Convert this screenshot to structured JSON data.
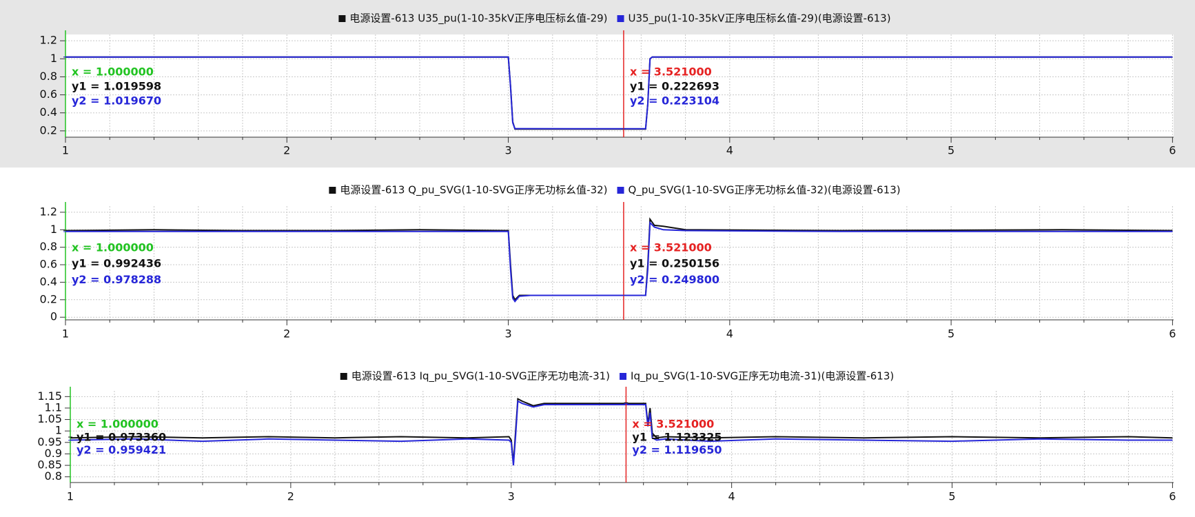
{
  "chart_data": [
    {
      "type": "line",
      "x": [
        1,
        2,
        2.99,
        3.0,
        3.01,
        3.02,
        3.03,
        3.3,
        3.62,
        3.63,
        3.64,
        3.65,
        5,
        6
      ],
      "series": [
        {
          "name": "电源设置-613 U35_pu(1-10-35kV正序电压标幺值-29)",
          "color": "#111111",
          "values": [
            1.02,
            1.02,
            1.02,
            1.02,
            0.7,
            0.3,
            0.22,
            0.22,
            0.22,
            0.5,
            1.0,
            1.02,
            1.02,
            1.02
          ]
        },
        {
          "name": "U35_pu(1-10-35kV正序电压标幺值-29)(电源设置-613)",
          "color": "#2626d8",
          "values": [
            1.02,
            1.02,
            1.02,
            1.02,
            0.69,
            0.29,
            0.225,
            0.223,
            0.223,
            0.5,
            1.0,
            1.02,
            1.02,
            1.02
          ]
        }
      ],
      "xlim": [
        1,
        6.005
      ],
      "xticks": [
        1,
        2,
        3,
        4,
        5,
        6
      ],
      "xminor": [
        1.2,
        1.4,
        1.6,
        1.8,
        2.2,
        2.4,
        2.6,
        2.8,
        3.2,
        3.4,
        3.6,
        3.8,
        4.2,
        4.4,
        4.6,
        4.8,
        5.2,
        5.4,
        5.6,
        5.8
      ],
      "ylim": [
        0.13,
        1.27
      ],
      "yticks": [
        0.2,
        0.4,
        0.6,
        0.8,
        1,
        1.2
      ],
      "grid": true,
      "cursors": [
        {
          "color": "#22c322",
          "x": {
            "value": 1,
            "label": "x = 1.000000"
          },
          "y1": {
            "value": 1.019598,
            "label": "y1 = 1.019598"
          },
          "y2": {
            "value": 1.01967,
            "label": "y2 = 1.019670"
          }
        },
        {
          "color": "#e52222",
          "x": {
            "value": 3.521,
            "label": "x = 3.521000"
          },
          "y1": {
            "value": 0.222693,
            "label": "y1 = 0.222693"
          },
          "y2": {
            "value": 0.223104,
            "label": "y2 = 0.223104"
          }
        }
      ]
    },
    {
      "type": "line",
      "x": [
        1,
        1.4,
        1.8,
        2.2,
        2.6,
        2.99,
        3.0,
        3.01,
        3.02,
        3.03,
        3.05,
        3.1,
        3.62,
        3.63,
        3.64,
        3.66,
        3.7,
        3.8,
        4.5,
        5.5,
        6
      ],
      "series": [
        {
          "name": "电源设置-613 Q_pu_SVG(1-10-SVG正序无功标幺值-32)",
          "color": "#111111",
          "values": [
            0.99,
            1.0,
            0.99,
            0.99,
            1.0,
            0.99,
            0.99,
            0.6,
            0.25,
            0.2,
            0.25,
            0.25,
            0.25,
            0.6,
            1.12,
            1.05,
            1.04,
            1.0,
            0.99,
            1.0,
            0.99
          ]
        },
        {
          "name": "Q_pu_SVG(1-10-SVG正序无功标幺值-32)(电源设置-613)",
          "color": "#2626d8",
          "values": [
            0.98,
            0.98,
            0.98,
            0.98,
            0.98,
            0.98,
            0.98,
            0.55,
            0.22,
            0.18,
            0.24,
            0.25,
            0.25,
            0.55,
            1.08,
            1.03,
            1.0,
            0.99,
            0.98,
            0.98,
            0.98
          ]
        }
      ],
      "xlim": [
        1,
        6.005
      ],
      "xticks": [
        1,
        2,
        3,
        4,
        5,
        6
      ],
      "xminor": [
        1.2,
        1.4,
        1.6,
        1.8,
        2.2,
        2.4,
        2.6,
        2.8,
        3.2,
        3.4,
        3.6,
        3.8,
        4.2,
        4.4,
        4.6,
        4.8,
        5.2,
        5.4,
        5.6,
        5.8
      ],
      "ylim": [
        -0.03,
        1.27
      ],
      "yticks": [
        0,
        0.2,
        0.4,
        0.6,
        0.8,
        1,
        1.2
      ],
      "grid": true,
      "cursors": [
        {
          "color": "#22c322",
          "x": {
            "value": 1,
            "label": "x = 1.000000"
          },
          "y1": {
            "value": 0.992436,
            "label": "y1 = 0.992436"
          },
          "y2": {
            "value": 0.978288,
            "label": "y2 = 0.978288"
          }
        },
        {
          "color": "#e52222",
          "x": {
            "value": 3.521,
            "label": "x = 3.521000"
          },
          "y1": {
            "value": 0.250156,
            "label": "y1 = 0.250156"
          },
          "y2": {
            "value": 0.2498,
            "label": "y2 = 0.249800"
          }
        }
      ]
    },
    {
      "type": "line",
      "x": [
        1,
        1.3,
        1.6,
        1.9,
        2.2,
        2.5,
        2.8,
        2.99,
        3.0,
        3.01,
        3.02,
        3.03,
        3.05,
        3.1,
        3.15,
        3.2,
        3.4,
        3.6,
        3.61,
        3.62,
        3.63,
        3.64,
        3.66,
        3.7,
        3.9,
        4.2,
        4.6,
        5,
        5.4,
        5.8,
        6
      ],
      "series": [
        {
          "name": "电源设置-613 Iq_pu_SVG(1-10-SVG正序无功电流-31)",
          "color": "#111111",
          "values": [
            0.97,
            0.975,
            0.97,
            0.975,
            0.97,
            0.975,
            0.97,
            0.975,
            0.96,
            0.86,
            1.0,
            1.14,
            1.13,
            1.11,
            1.12,
            1.12,
            1.12,
            1.12,
            1.12,
            1.03,
            1.1,
            0.99,
            0.97,
            0.975,
            0.97,
            0.975,
            0.97,
            0.975,
            0.97,
            0.975,
            0.97
          ]
        },
        {
          "name": "Iq_pu_SVG(1-10-SVG正序无功电流-31)(电源设置-613)",
          "color": "#2626d8",
          "values": [
            0.96,
            0.965,
            0.955,
            0.965,
            0.96,
            0.955,
            0.965,
            0.96,
            0.95,
            0.85,
            0.98,
            1.13,
            1.12,
            1.105,
            1.115,
            1.115,
            1.115,
            1.115,
            1.115,
            1.02,
            1.08,
            0.97,
            0.96,
            0.965,
            0.955,
            0.965,
            0.96,
            0.955,
            0.965,
            0.96,
            0.96
          ]
        }
      ],
      "xlim": [
        1,
        6.005
      ],
      "xticks": [
        1,
        2,
        3,
        4,
        5,
        6
      ],
      "xminor": [
        1.2,
        1.4,
        1.6,
        1.8,
        2.2,
        2.4,
        2.6,
        2.8,
        3.2,
        3.4,
        3.6,
        3.8,
        4.2,
        4.4,
        4.6,
        4.8,
        5.2,
        5.4,
        5.6,
        5.8
      ],
      "ylim": [
        0.775,
        1.175
      ],
      "yticks": [
        0.8,
        0.85,
        0.9,
        0.95,
        1,
        1.05,
        1.1,
        1.15
      ],
      "grid": true,
      "cursors": [
        {
          "color": "#22c322",
          "x": {
            "value": 1,
            "label": "x = 1.000000"
          },
          "y1": {
            "value": 0.97336,
            "label": "y1 = 0.973360"
          },
          "y2": {
            "value": 0.959421,
            "label": "y2 = 0.959421"
          }
        },
        {
          "color": "#e52222",
          "x": {
            "value": 3.521,
            "label": "x = 3.521000"
          },
          "y1": {
            "value": 1.123325,
            "label": "y1 = 1.123325"
          },
          "y2": {
            "value": 1.11965,
            "label": "y2 = 1.119650"
          }
        }
      ]
    }
  ]
}
